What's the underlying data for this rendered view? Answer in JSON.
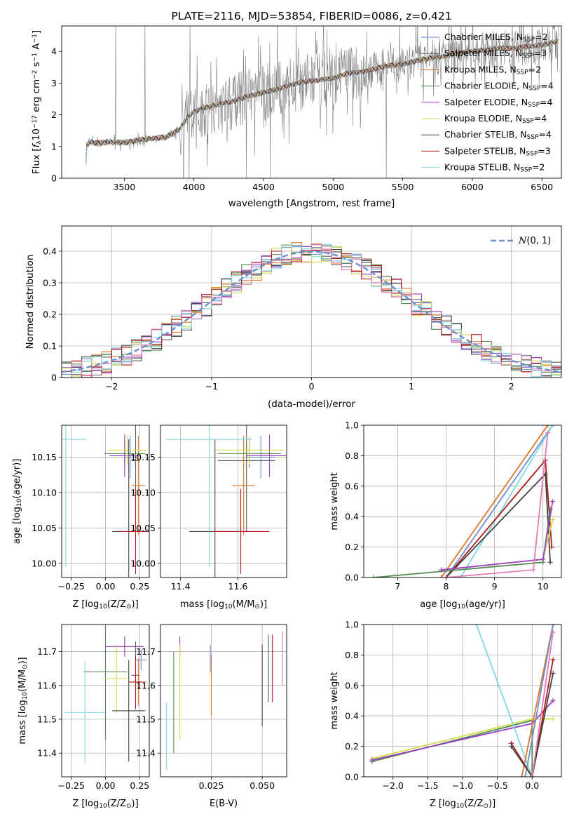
{
  "figure": {
    "background": "#ffffff",
    "grid_color": "#b0b0b0"
  },
  "series": [
    {
      "name": "Chabrier MILES, N",
      "sub": "SSP",
      "val": "=2",
      "color": "#6a8ecf"
    },
    {
      "name": "Salpeter MILES, N",
      "sub": "SSP",
      "val": "=3",
      "color": "#5c5c5c"
    },
    {
      "name": "Kroupa MILES, N",
      "sub": "SSP",
      "val": "=2",
      "color": "#e0752a"
    },
    {
      "name": "Chabrier ELODIE, N",
      "sub": "SSP",
      "val": "=4",
      "color": "#4f8a4f"
    },
    {
      "name": "Salpeter ELODIE, N",
      "sub": "SSP",
      "val": "=4",
      "color": "#9b3fc4"
    },
    {
      "name": "Kroupa ELODIE, N",
      "sub": "SSP",
      "val": "=4",
      "color": "#d2dc4a"
    },
    {
      "name": "Chabrier STELIB, N",
      "sub": "SSP",
      "val": "=4",
      "color": "#444444"
    },
    {
      "name": "Salpeter STELIB, N",
      "sub": "SSP",
      "val": "=3",
      "color": "#b01c1c"
    },
    {
      "name": "Kroupa STELIB, N",
      "sub": "SSP",
      "val": "=2",
      "color": "#7ed8e0"
    }
  ],
  "extra_colors": {
    "pink": "#e27ab4",
    "data_gray": "#808080",
    "normal_blue": "#6a8ecf"
  },
  "chart_data": [
    {
      "id": "spectrum",
      "type": "line",
      "title": "PLATE=2116, MJD=53854, FIBERID=0086, z=0.421",
      "xlabel": "wavelength [Angstrom, rest frame]",
      "ylabel_main": "Flux [",
      "ylabel_f": "f",
      "ylabel_lambda": "λ",
      "ylabel_mid": "10",
      "ylabel_exp1": "−17",
      "ylabel_units": " erg cm",
      "ylabel_exp2": "−2",
      "ylabel_s": " s",
      "ylabel_exp3": "−1",
      "ylabel_A": " A",
      "ylabel_exp4": "−1",
      "ylabel_end": "]",
      "xlim": [
        3050,
        6640
      ],
      "ylim": [
        0,
        4.8
      ],
      "xticks": [
        3500,
        4000,
        4500,
        5000,
        5500,
        6000,
        6500
      ],
      "yticks": [
        0,
        1,
        2,
        3,
        4
      ],
      "model_knots": [
        [
          3220,
          0.0
        ],
        [
          3230,
          1.05
        ],
        [
          3260,
          1.15
        ],
        [
          3300,
          1.1
        ],
        [
          3400,
          1.15
        ],
        [
          3500,
          1.12
        ],
        [
          3600,
          1.2
        ],
        [
          3700,
          1.25
        ],
        [
          3800,
          1.3
        ],
        [
          3900,
          1.55
        ],
        [
          3950,
          1.9
        ],
        [
          4000,
          2.1
        ],
        [
          4100,
          2.25
        ],
        [
          4200,
          2.35
        ],
        [
          4300,
          2.45
        ],
        [
          4400,
          2.6
        ],
        [
          4500,
          2.7
        ],
        [
          4600,
          2.8
        ],
        [
          4700,
          2.95
        ],
        [
          4800,
          3.05
        ],
        [
          4900,
          3.1
        ],
        [
          5000,
          3.15
        ],
        [
          5100,
          3.3
        ],
        [
          5200,
          3.35
        ],
        [
          5300,
          3.45
        ],
        [
          5400,
          3.55
        ],
        [
          5500,
          3.6
        ],
        [
          5600,
          3.7
        ],
        [
          5700,
          3.8
        ],
        [
          5800,
          3.85
        ],
        [
          5900,
          3.95
        ],
        [
          6000,
          4.0
        ],
        [
          6100,
          4.05
        ],
        [
          6200,
          4.1
        ],
        [
          6300,
          4.1
        ],
        [
          6400,
          4.15
        ],
        [
          6500,
          4.2
        ],
        [
          6600,
          4.3
        ]
      ],
      "legend": "top-right"
    },
    {
      "id": "residuals",
      "type": "line",
      "xlabel": "(data-model)/error",
      "ylabel": "Normed distribution",
      "legend_label": "N(0,1)",
      "xlim": [
        -2.5,
        2.5
      ],
      "ylim": [
        0,
        0.48
      ],
      "xticks": [
        -2,
        -1,
        0,
        1,
        2
      ],
      "yticks": [
        0.0,
        0.1,
        0.2,
        0.3,
        0.4
      ],
      "bin_width": 0.1,
      "hist_base": [
        0.02,
        0.02,
        0.03,
        0.03,
        0.04,
        0.04,
        0.06,
        0.07,
        0.09,
        0.1,
        0.13,
        0.14,
        0.16,
        0.17,
        0.19,
        0.2,
        0.22,
        0.22,
        0.24,
        0.25,
        0.27,
        0.29,
        0.31,
        0.28,
        0.3,
        0.31,
        0.33,
        0.34,
        0.36,
        0.38,
        0.39,
        0.42,
        0.37,
        0.38,
        0.39,
        0.36,
        0.34,
        0.35,
        0.32,
        0.32,
        0.33,
        0.31,
        0.3,
        0.31,
        0.32,
        0.32,
        0.3,
        0.24,
        0.2,
        0.18,
        0.17,
        0.16,
        0.14,
        0.13,
        0.1,
        0.09,
        0.08,
        0.07,
        0.06,
        0.05,
        0.04,
        0.04,
        0.03,
        0.03,
        0.02,
        0.02,
        0.02,
        0.02,
        0.02,
        0.02,
        0.02,
        0.02,
        0.02,
        0.02,
        0.02,
        0.02,
        0.02,
        0.02,
        0.02,
        0.02
      ],
      "legend": "top-right"
    },
    {
      "id": "age_vs_Z",
      "type": "scatter",
      "xlabel": "Z [log",
      "xlabel_sub": "10",
      "xlabel_rest": "(Z/Z",
      "xlabel_end": ")]",
      "ylabel": "age  [log",
      "ylabel_sub": "10",
      "ylabel_rest": "(age/yr)]",
      "xlim": [
        -0.32,
        0.32
      ],
      "ylim": [
        9.98,
        10.195
      ],
      "xticks": [
        -0.25,
        0.0,
        0.25
      ],
      "xticklabels": [
        "−0.25",
        "0.00",
        "0.25"
      ],
      "yticks": [
        10.0,
        10.05,
        10.1,
        10.15
      ],
      "yticklabels": [
        "10.00",
        "10.05",
        "10.10",
        "10.15"
      ],
      "points": [
        {
          "s": 0,
          "x": 0.18,
          "y": 10.15,
          "xe": 0.04,
          "ye": 0.03
        },
        {
          "s": 1,
          "x": 0.22,
          "y": 10.145,
          "xe": 0.03,
          "ye": 0.1
        },
        {
          "s": 2,
          "x": 0.24,
          "y": 10.11,
          "xe": 0.05,
          "ye": 0.07
        },
        {
          "s": 3,
          "x": 0.14,
          "y": 10.155,
          "xe": 0.15,
          "ye": 0.02
        },
        {
          "s": 4,
          "x": 0.14,
          "y": 10.152,
          "xe": 0.11,
          "ye": 0.03
        },
        {
          "s": 5,
          "x": 0.16,
          "y": 10.16,
          "xe": 0.14,
          "ye": 0.02
        },
        {
          "s": 6,
          "x": 0.17,
          "y": 10.045,
          "xe": 0.12,
          "ye": 0.13
        },
        {
          "s": 7,
          "x": 0.22,
          "y": 10.045,
          "xe": 0.12,
          "ye": 0.06
        },
        {
          "s": 8,
          "x": -0.29,
          "y": 10.175,
          "xe": 0.15,
          "ye": 0.18
        }
      ]
    },
    {
      "id": "age_vs_mass",
      "type": "scatter",
      "xlabel": "mass [log",
      "xlabel_sub": "10",
      "xlabel_rest": "(M/M",
      "xlabel_end": ")]",
      "xlim": [
        11.33,
        11.77
      ],
      "ylim": [
        9.98,
        10.195
      ],
      "xticks": [
        11.4,
        11.6
      ],
      "xticklabels": [
        "11.4",
        "11.6"
      ],
      "yticks": [
        10.0,
        10.05,
        10.1,
        10.15
      ],
      "yticklabels": [
        "10.00",
        "10.05",
        "10.10",
        "10.15"
      ],
      "points": [
        {
          "s": 0,
          "x": 11.68,
          "y": 10.15,
          "xe": 0.05,
          "ye": 0.03
        },
        {
          "s": 1,
          "x": 11.63,
          "y": 10.145,
          "xe": 0.1,
          "ye": 0.1
        },
        {
          "s": 2,
          "x": 11.62,
          "y": 10.11,
          "xe": 0.04,
          "ye": 0.07
        },
        {
          "s": 3,
          "x": 11.64,
          "y": 10.155,
          "xe": 0.11,
          "ye": 0.02
        },
        {
          "s": 4,
          "x": 11.71,
          "y": 10.152,
          "xe": 0.08,
          "ye": 0.03
        },
        {
          "s": 5,
          "x": 11.64,
          "y": 10.16,
          "xe": 0.12,
          "ye": 0.02
        },
        {
          "s": 6,
          "x": 11.52,
          "y": 10.045,
          "xe": 0.09,
          "ye": 0.13
        },
        {
          "s": 7,
          "x": 11.61,
          "y": 10.045,
          "xe": 0.1,
          "ye": 0.06
        },
        {
          "s": 8,
          "x": 11.5,
          "y": 10.175,
          "xe": 0.15,
          "ye": 0.18
        }
      ]
    },
    {
      "id": "weight_vs_age",
      "type": "line",
      "xlabel": "age  [log",
      "xlabel_sub": "10",
      "xlabel_rest": "(age/yr)]",
      "ylabel": "mass weight",
      "xlim": [
        6.3,
        10.38
      ],
      "ylim": [
        0.0,
        1.0
      ],
      "xticks": [
        7,
        8,
        9,
        10
      ],
      "yticks": [
        0.0,
        0.2,
        0.4,
        0.6,
        0.8,
        1.0
      ],
      "yticklabels": [
        "0.0",
        "0.2",
        "0.4",
        "0.6",
        "0.8",
        "1.0"
      ],
      "lines": [
        {
          "s": 0,
          "pts": [
            [
              8.0,
              0.0
            ],
            [
              10.2,
              1.0
            ]
          ]
        },
        {
          "s": 2,
          "pts": [
            [
              7.9,
              0.0
            ],
            [
              10.1,
              1.0
            ]
          ]
        },
        {
          "s": 8,
          "pts": [
            [
              8.3,
              0.0
            ],
            [
              10.2,
              1.0
            ]
          ]
        },
        {
          "s": 7,
          "pts": [
            [
              8.0,
              0.0
            ],
            [
              10.05,
              0.77
            ],
            [
              10.18,
              0.2
            ]
          ]
        },
        {
          "s": 6,
          "pts": [
            [
              8.0,
              0.0
            ],
            [
              10.05,
              0.68
            ],
            [
              10.15,
              0.1
            ]
          ]
        },
        {
          "s": 3,
          "pts": [
            [
              6.5,
              0.0
            ],
            [
              10.0,
              0.1
            ],
            [
              10.15,
              0.45
            ]
          ]
        },
        {
          "s": 5,
          "pts": [
            [
              7.9,
              0.05
            ],
            [
              10.0,
              0.12
            ],
            [
              10.2,
              0.38
            ]
          ]
        },
        {
          "s": 4,
          "pts": [
            [
              7.9,
              0.05
            ],
            [
              10.0,
              0.12
            ],
            [
              10.2,
              0.5
            ]
          ]
        },
        {
          "s": -1,
          "pts": [
            [
              8.0,
              0.0
            ],
            [
              9.8,
              0.05
            ],
            [
              10.1,
              0.95
            ]
          ]
        }
      ]
    },
    {
      "id": "mass_vs_Z",
      "type": "scatter",
      "xlabel": "Z [log",
      "xlabel_sub": "10",
      "xlabel_rest": "(Z/Z",
      "xlabel_end": ")]",
      "ylabel": "mass [log",
      "ylabel_sub": "10",
      "ylabel_rest": "(M/M",
      "ylabel_end": ")]",
      "xlim": [
        -0.32,
        0.32
      ],
      "ylim": [
        11.33,
        11.78
      ],
      "xticks": [
        -0.25,
        0.0,
        0.25
      ],
      "xticklabels": [
        "−0.25",
        "0.00",
        "0.25"
      ],
      "yticks": [
        11.4,
        11.5,
        11.6,
        11.7
      ],
      "yticklabels": [
        "11.4",
        "11.5",
        "11.6",
        "11.7"
      ],
      "points": [
        {
          "s": 0,
          "x": 0.26,
          "y": 11.675,
          "xe": 0.04,
          "ye": 0.03
        },
        {
          "s": 1,
          "x": 0.22,
          "y": 11.63,
          "xe": 0.03,
          "ye": 0.1
        },
        {
          "s": 2,
          "x": 0.24,
          "y": 11.61,
          "xe": 0.06,
          "ye": 0.07
        },
        {
          "s": 3,
          "x": 0.0,
          "y": 11.64,
          "xe": 0.16,
          "ye": 0.2
        },
        {
          "s": 4,
          "x": 0.14,
          "y": 11.715,
          "xe": 0.14,
          "ye": 0.03
        },
        {
          "s": 5,
          "x": 0.08,
          "y": 11.62,
          "xe": 0.08,
          "ye": 0.1
        },
        {
          "s": 6,
          "x": 0.17,
          "y": 11.525,
          "xe": 0.12,
          "ye": 0.15
        },
        {
          "s": 7,
          "x": 0.22,
          "y": 11.61,
          "xe": 0.05,
          "ye": 0.08
        },
        {
          "s": 8,
          "x": -0.15,
          "y": 11.52,
          "xe": 0.15,
          "ye": 0.15
        }
      ]
    },
    {
      "id": "mass_vs_EBV",
      "type": "scatter",
      "xlabel": "E(B-V)",
      "xlim": [
        0.0,
        0.062
      ],
      "ylim": [
        11.33,
        11.78
      ],
      "xticks": [
        0.025,
        0.05
      ],
      "xticklabels": [
        "0.025",
        "0.050"
      ],
      "yticks": [
        11.4,
        11.5,
        11.6,
        11.7
      ],
      "yticklabels": [
        "11.4",
        "11.5",
        "11.6",
        "11.7"
      ],
      "points": [
        {
          "s": 0,
          "x": 0.0245,
          "y": 11.68,
          "xe": 0.0,
          "ye": 0.04
        },
        {
          "s": 1,
          "x": 0.053,
          "y": 11.65,
          "xe": 0.0,
          "ye": 0.1
        },
        {
          "s": 2,
          "x": 0.025,
          "y": 11.6,
          "xe": 0.0,
          "ye": 0.09
        },
        {
          "s": 3,
          "x": 0.0065,
          "y": 11.55,
          "xe": 0.0,
          "ye": 0.15
        },
        {
          "s": 4,
          "x": 0.0095,
          "y": 11.715,
          "xe": 0.0,
          "ye": 0.03
        },
        {
          "s": 5,
          "x": 0.0095,
          "y": 11.58,
          "xe": 0.0,
          "ye": 0.14
        },
        {
          "s": 6,
          "x": 0.05,
          "y": 11.6,
          "xe": 0.0,
          "ye": 0.12
        },
        {
          "s": 7,
          "x": 0.055,
          "y": 11.65,
          "xe": 0.0,
          "ye": 0.1
        },
        {
          "s": 8,
          "x": 0.003,
          "y": 11.45,
          "xe": 0.0,
          "ye": 0.1
        },
        {
          "s": -1,
          "x": 0.06,
          "y": 11.68,
          "xe": 0.0,
          "ye": 0.08
        }
      ]
    },
    {
      "id": "weight_vs_Z",
      "type": "line",
      "xlabel": "Z [log",
      "xlabel_sub": "10",
      "xlabel_rest": "(Z/Z",
      "xlabel_end": ")]",
      "ylabel": "mass weight",
      "xlim": [
        -2.42,
        0.42
      ],
      "ylim": [
        0.0,
        1.0
      ],
      "xticks": [
        -2.0,
        -1.5,
        -1.0,
        -0.5,
        0.0
      ],
      "xticklabels": [
        "−2.0",
        "−1.5",
        "−1.0",
        "−0.5",
        "0.0"
      ],
      "yticks": [
        0.0,
        0.2,
        0.4,
        0.6,
        0.8,
        1.0
      ],
      "yticklabels": [
        "0.0",
        "0.2",
        "0.4",
        "0.6",
        "0.8",
        "1.0"
      ],
      "lines": [
        {
          "s": 3,
          "pts": [
            [
              -2.3,
              0.1
            ],
            [
              0.0,
              0.37
            ],
            [
              0.0,
              0.0
            ]
          ]
        },
        {
          "s": 5,
          "pts": [
            [
              -2.3,
              0.12
            ],
            [
              0.0,
              0.38
            ],
            [
              0.3,
              0.38
            ]
          ]
        },
        {
          "s": 4,
          "pts": [
            [
              -2.3,
              0.11
            ],
            [
              0.0,
              0.35
            ],
            [
              0.3,
              0.5
            ]
          ]
        },
        {
          "s": 8,
          "pts": [
            [
              -0.8,
              1.0
            ],
            [
              0.0,
              0.0
            ]
          ]
        },
        {
          "s": 2,
          "pts": [
            [
              -0.15,
              0.0
            ],
            [
              0.3,
              1.0
            ]
          ]
        },
        {
          "s": 0,
          "pts": [
            [
              -0.1,
              0.0
            ],
            [
              0.3,
              1.0
            ]
          ]
        },
        {
          "s": 7,
          "pts": [
            [
              -0.3,
              0.22
            ],
            [
              0.0,
              0.0
            ],
            [
              0.3,
              0.77
            ]
          ]
        },
        {
          "s": 6,
          "pts": [
            [
              -0.3,
              0.2
            ],
            [
              0.0,
              0.0
            ],
            [
              0.3,
              0.68
            ]
          ]
        },
        {
          "s": -1,
          "pts": [
            [
              0.0,
              0.0
            ],
            [
              0.3,
              0.95
            ]
          ]
        }
      ]
    }
  ]
}
